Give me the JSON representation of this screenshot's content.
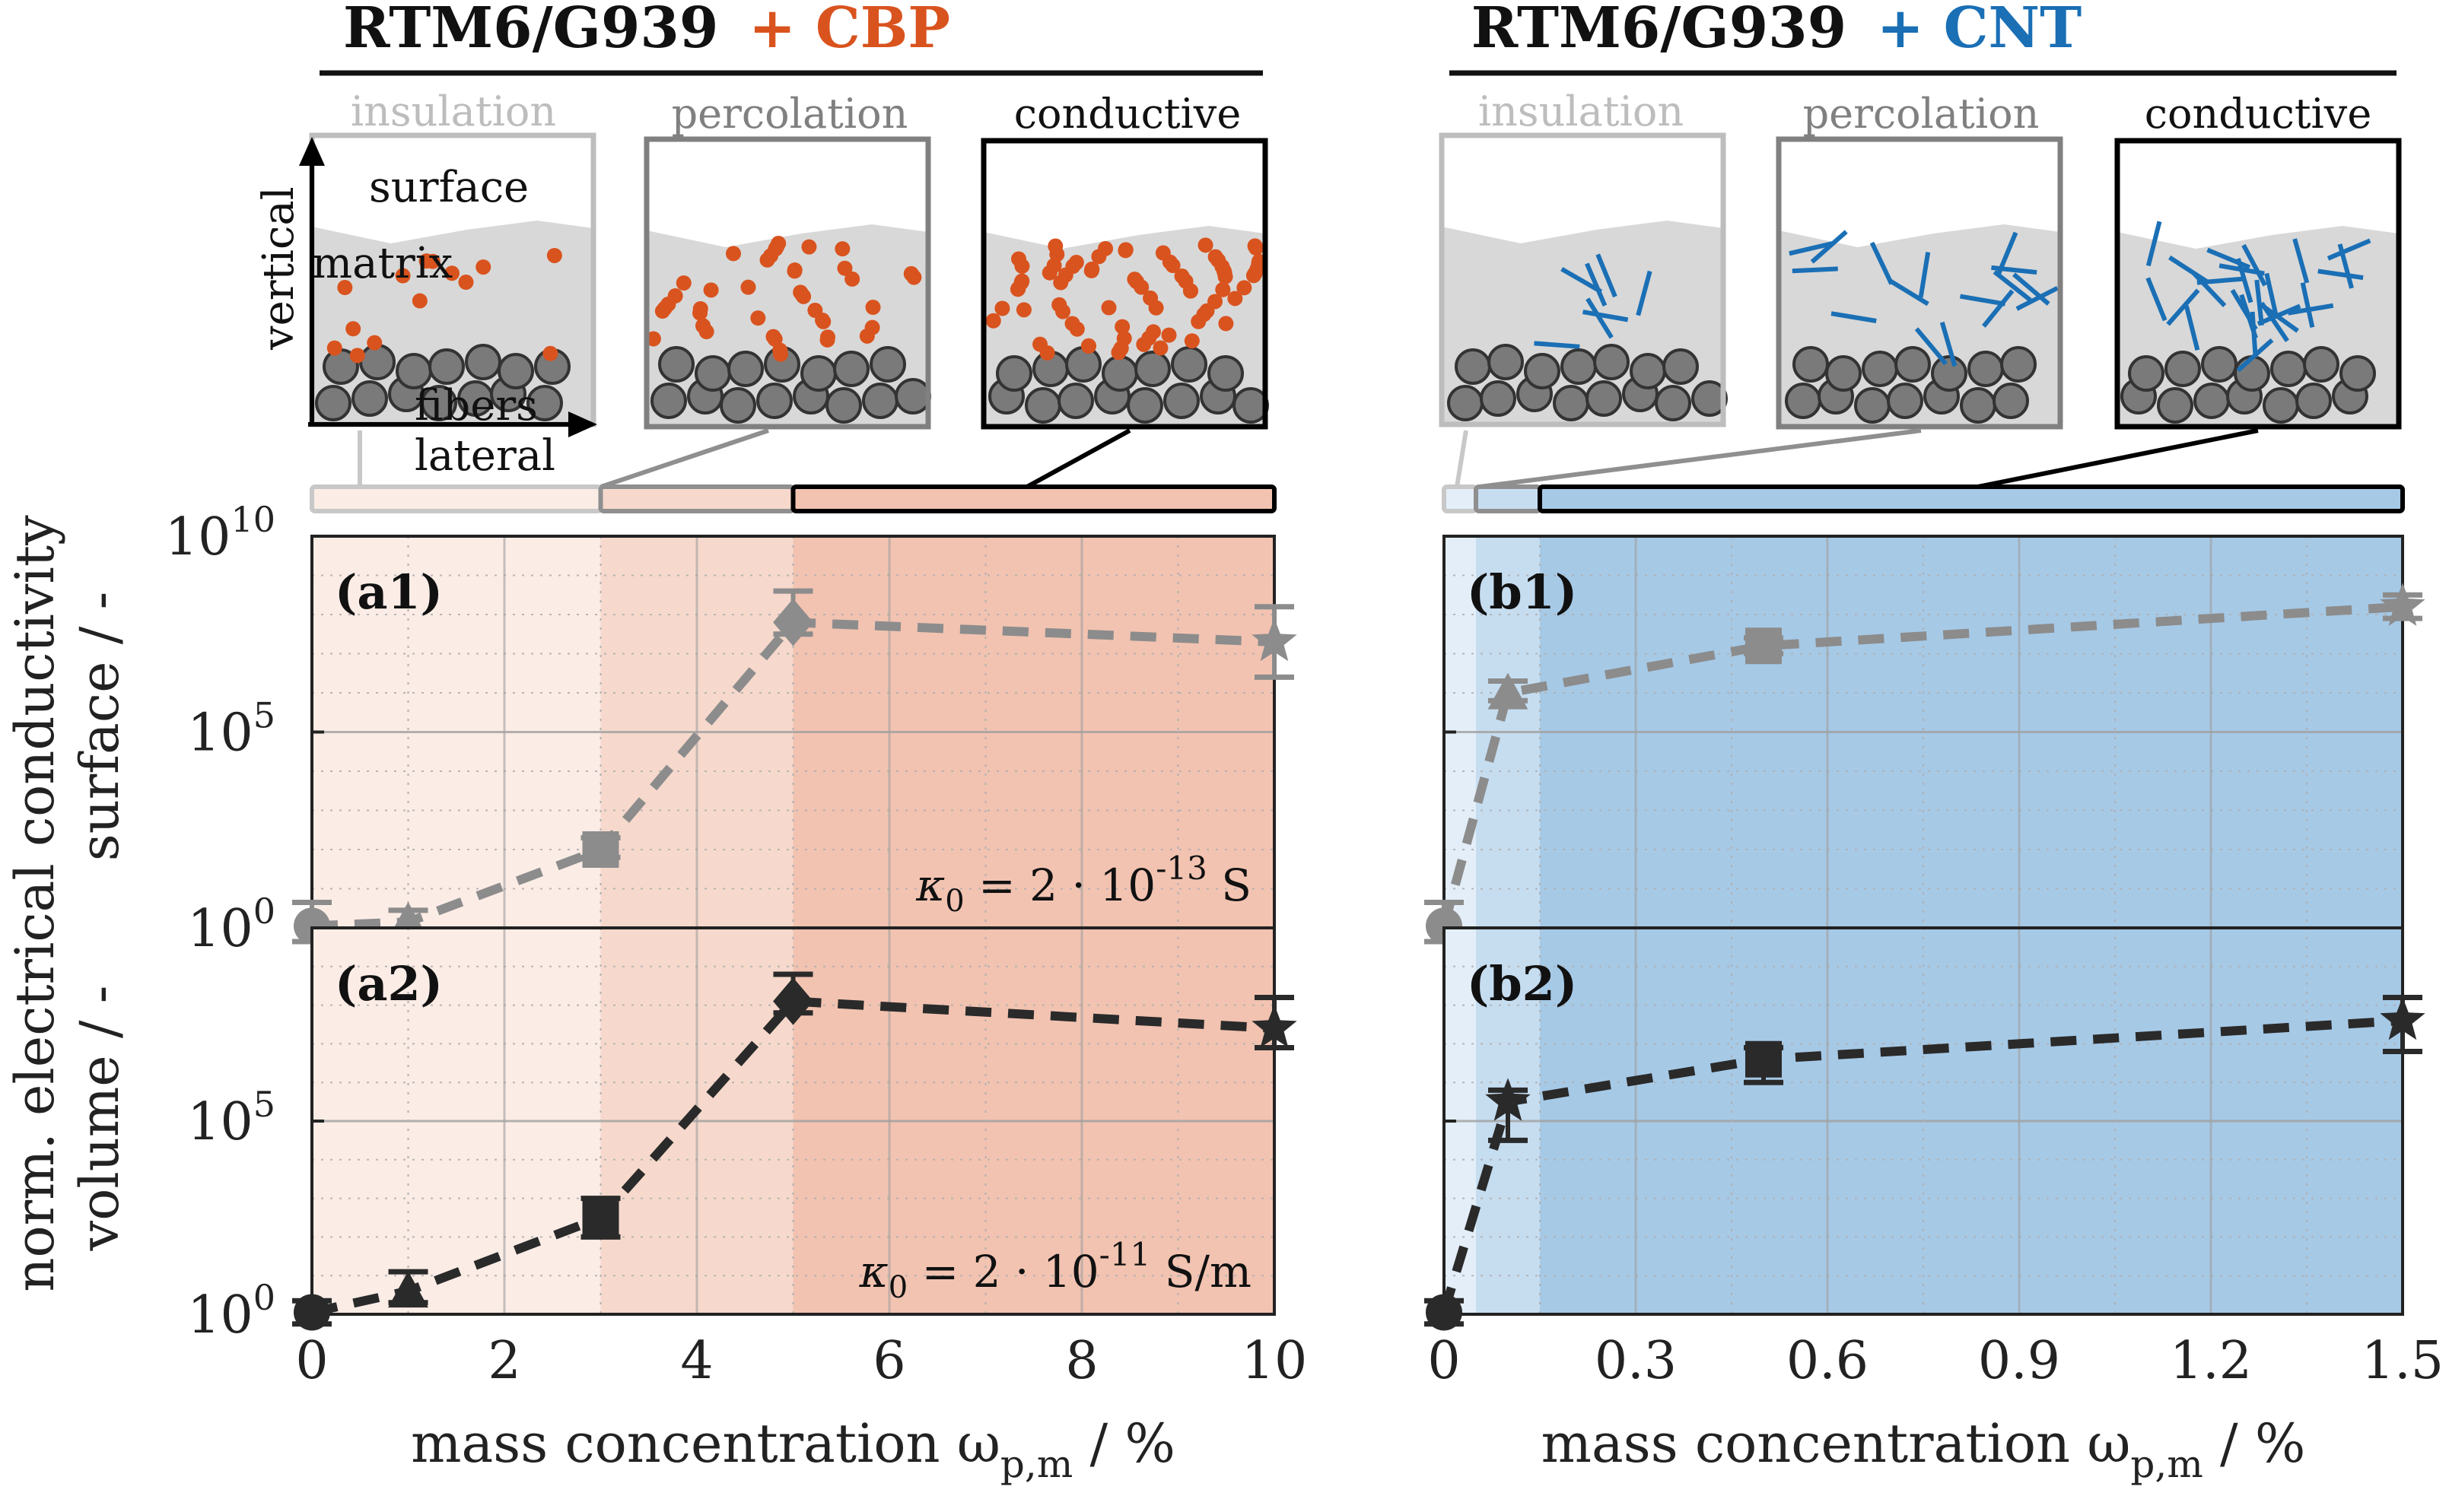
{
  "colors": {
    "cbp": "#d9531e",
    "cnt": "#1a6fb5",
    "cbp_insulation_bg": "#fbece6",
    "cbp_percolation_bg": "#f6d9cc",
    "cbp_conductive_bg": "#f2c3b1",
    "cnt_insulation_bg": "#e3eef8",
    "cnt_percolation_bg": "#c6ddf0",
    "cnt_conductive_bg": "#a6c9e6",
    "surface_series": "#8c8c8c",
    "volume_series": "#2a2a2a"
  },
  "header": {
    "left": {
      "base": "RTM6/G939",
      "plus": "+ CBP"
    },
    "right": {
      "base": "RTM6/G939",
      "plus": "+ CNT"
    }
  },
  "stages": {
    "insulation": "insulation",
    "percolation": "percolation",
    "conductive": "conductive"
  },
  "schematic_labels": {
    "surface": "surface",
    "matrix": "matrix",
    "fibers": "fibers",
    "vertical": "vertical",
    "lateral": "lateral"
  },
  "shared_ylabel": {
    "main": "norm. electrical conductivity",
    "surface": "surface / -",
    "volume": "volume / -"
  },
  "chart_data": [
    {
      "id": "a1",
      "label": "(a1)",
      "type": "line",
      "title": "RTM6/G939 + CBP",
      "ylabel": "surface / -",
      "xlabel": "mass concentration ω_p,m / %",
      "xlim": [
        0,
        10
      ],
      "ylim_log10": [
        0,
        10
      ],
      "xticks": [
        "0",
        "2",
        "4",
        "6",
        "8",
        "10"
      ],
      "yticks": [
        "10^0",
        "10^5",
        "10^10"
      ],
      "annotation": "κ0 = 2 · 10^-13 S",
      "x": [
        0,
        1,
        3,
        5,
        10
      ],
      "y_log10": [
        0.05,
        0.15,
        2.0,
        7.8,
        7.3
      ],
      "err_log10": [
        [
          -0.4,
          0.6
        ],
        [
          -0.3,
          0.3
        ],
        [
          -0.2,
          0.3
        ],
        [
          -0.3,
          0.8
        ],
        [
          -0.9,
          0.9
        ]
      ],
      "markers": [
        "circle",
        "triangle",
        "square",
        "diamond",
        "star"
      ],
      "series_color": "#8c8c8c",
      "regions": [
        [
          0,
          3,
          "insulation"
        ],
        [
          3,
          5,
          "percolation"
        ],
        [
          5,
          10,
          "conductive"
        ]
      ],
      "grid": true
    },
    {
      "id": "a2",
      "label": "(a2)",
      "type": "line",
      "title": "RTM6/G939 + CBP",
      "ylabel": "volume / -",
      "xlabel": "mass concentration ω_p,m / %",
      "xlim": [
        0,
        10
      ],
      "ylim_log10": [
        0,
        10
      ],
      "xticks": [
        "0",
        "2",
        "4",
        "6",
        "8",
        "10"
      ],
      "yticks": [
        "10^0",
        "10^5"
      ],
      "annotation": "κ0 = 2 · 10^-11 S/m",
      "x": [
        0,
        1,
        3,
        5,
        10
      ],
      "y_log10": [
        0.05,
        0.6,
        2.5,
        8.1,
        7.4
      ],
      "err_log10": [
        [
          -0.3,
          0.3
        ],
        [
          -0.3,
          0.5
        ],
        [
          -0.5,
          0.5
        ],
        [
          -0.3,
          0.7
        ],
        [
          -0.5,
          0.8
        ]
      ],
      "markers": [
        "circle",
        "triangle",
        "square",
        "diamond",
        "star"
      ],
      "series_color": "#2a2a2a",
      "regions": [
        [
          0,
          3,
          "insulation"
        ],
        [
          3,
          5,
          "percolation"
        ],
        [
          5,
          10,
          "conductive"
        ]
      ],
      "grid": true
    },
    {
      "id": "b1",
      "label": "(b1)",
      "type": "line",
      "title": "RTM6/G939 + CNT",
      "ylabel": "surface / -",
      "xlabel": "mass concentration ω_p,m / %",
      "xlim": [
        0,
        1.5
      ],
      "ylim_log10": [
        0,
        10
      ],
      "xticks": [
        "0",
        "0.3",
        "0.6",
        "0.9",
        "1.2",
        "1.5"
      ],
      "yticks": [
        "10^0",
        "10^5",
        "10^10"
      ],
      "annotation": "",
      "x": [
        0,
        0.1,
        0.5,
        1.5
      ],
      "y_log10": [
        0.05,
        6.0,
        7.2,
        8.2
      ],
      "err_log10": [
        [
          -0.4,
          0.6
        ],
        [
          -0.2,
          0.3
        ],
        [
          -0.2,
          0.2
        ],
        [
          -0.3,
          0.3
        ]
      ],
      "markers": [
        "circle",
        "triangle",
        "square",
        "star"
      ],
      "series_color": "#8c8c8c",
      "regions": [
        [
          0,
          0.05,
          "insulation"
        ],
        [
          0.05,
          0.15,
          "percolation"
        ],
        [
          0.15,
          1.5,
          "conductive"
        ]
      ],
      "grid": true
    },
    {
      "id": "b2",
      "label": "(b2)",
      "type": "line",
      "title": "RTM6/G939 + CNT",
      "ylabel": "volume / -",
      "xlabel": "mass concentration ω_p,m / %",
      "xlim": [
        0,
        1.5
      ],
      "ylim_log10": [
        0,
        10
      ],
      "xticks": [
        "0",
        "0.3",
        "0.6",
        "0.9",
        "1.2",
        "1.5"
      ],
      "yticks": [
        "10^0",
        "10^5"
      ],
      "annotation": "",
      "x": [
        0,
        0.1,
        0.5,
        1.5
      ],
      "y_log10": [
        0.05,
        5.5,
        6.6,
        7.6
      ],
      "err_log10": [
        [
          -0.3,
          0.3
        ],
        [
          -1.0,
          0.3
        ],
        [
          -0.6,
          0.3
        ],
        [
          -0.8,
          0.6
        ]
      ],
      "markers": [
        "circle",
        "star",
        "square",
        "star"
      ],
      "series_color": "#2a2a2a",
      "regions": [
        [
          0,
          0.05,
          "insulation"
        ],
        [
          0.05,
          0.15,
          "percolation"
        ],
        [
          0.15,
          1.5,
          "conductive"
        ]
      ],
      "grid": true
    }
  ]
}
